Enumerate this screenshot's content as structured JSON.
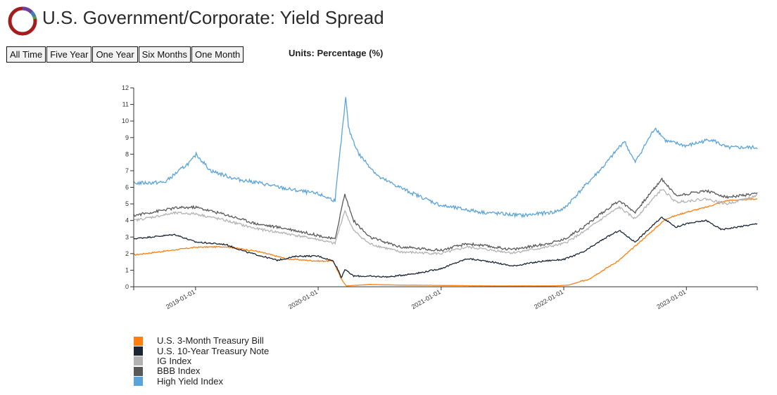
{
  "header": {
    "title": "U.S. Government/Corporate: Yield Spread",
    "units": "Units: Percentage (%)",
    "logo_colors": [
      "#a31d1d",
      "#6a3fa0",
      "#3f7fbf",
      "#4aa34a"
    ]
  },
  "range_buttons": [
    {
      "label": "All Time",
      "name": "all-time-button"
    },
    {
      "label": "Five Year",
      "name": "five-year-button"
    },
    {
      "label": "One Year",
      "name": "one-year-button"
    },
    {
      "label": "Six Months",
      "name": "six-months-button"
    },
    {
      "label": "One Month",
      "name": "one-month-button"
    }
  ],
  "chart_data": {
    "type": "line",
    "title": "",
    "xlabel": "",
    "ylabel": "",
    "x_range": [
      "2018-07-01",
      "2023-07-31"
    ],
    "ylim": [
      0,
      12
    ],
    "y_ticks": [
      "0",
      "1",
      "2",
      "3",
      "4",
      "5",
      "6",
      "7",
      "8",
      "9",
      "10",
      "11",
      "12"
    ],
    "x_ticks": [
      "2019-01-01",
      "2020-01-01",
      "2021-01-01",
      "2022-01-01",
      "2023-01-01"
    ],
    "grid": false,
    "legend_position": "bottom-left",
    "series": [
      {
        "name": "U.S. 3-Month Treasury Bill",
        "color": "#ff7f0e",
        "points": [
          [
            "2018-07-01",
            1.92
          ],
          [
            "2018-10-01",
            2.15
          ],
          [
            "2019-01-01",
            2.38
          ],
          [
            "2019-04-01",
            2.42
          ],
          [
            "2019-07-01",
            2.15
          ],
          [
            "2019-10-01",
            1.68
          ],
          [
            "2020-01-01",
            1.55
          ],
          [
            "2020-02-15",
            1.55
          ],
          [
            "2020-03-10",
            0.45
          ],
          [
            "2020-03-25",
            0.05
          ],
          [
            "2020-06-01",
            0.14
          ],
          [
            "2020-09-01",
            0.1
          ],
          [
            "2021-01-01",
            0.08
          ],
          [
            "2021-06-01",
            0.05
          ],
          [
            "2021-12-01",
            0.05
          ],
          [
            "2022-01-15",
            0.1
          ],
          [
            "2022-03-15",
            0.45
          ],
          [
            "2022-06-15",
            1.6
          ],
          [
            "2022-09-01",
            3.0
          ],
          [
            "2022-11-01",
            4.1
          ],
          [
            "2023-01-01",
            4.5
          ],
          [
            "2023-03-01",
            4.8
          ],
          [
            "2023-05-01",
            5.2
          ],
          [
            "2023-07-31",
            5.3
          ]
        ]
      },
      {
        "name": "U.S. 10-Year Treasury Note",
        "color": "#1b2635",
        "points": [
          [
            "2018-07-01",
            2.9
          ],
          [
            "2018-11-01",
            3.15
          ],
          [
            "2019-01-01",
            2.7
          ],
          [
            "2019-04-01",
            2.55
          ],
          [
            "2019-06-01",
            2.1
          ],
          [
            "2019-09-01",
            1.6
          ],
          [
            "2019-11-01",
            1.85
          ],
          [
            "2020-01-01",
            1.85
          ],
          [
            "2020-02-15",
            1.55
          ],
          [
            "2020-03-01",
            1.0
          ],
          [
            "2020-03-10",
            0.55
          ],
          [
            "2020-03-20",
            1.05
          ],
          [
            "2020-04-15",
            0.65
          ],
          [
            "2020-08-01",
            0.6
          ],
          [
            "2020-11-01",
            0.85
          ],
          [
            "2021-01-01",
            1.1
          ],
          [
            "2021-03-20",
            1.7
          ],
          [
            "2021-06-01",
            1.5
          ],
          [
            "2021-08-01",
            1.25
          ],
          [
            "2021-11-01",
            1.55
          ],
          [
            "2022-01-01",
            1.65
          ],
          [
            "2022-03-01",
            2.1
          ],
          [
            "2022-05-01",
            2.9
          ],
          [
            "2022-06-15",
            3.4
          ],
          [
            "2022-08-01",
            2.7
          ],
          [
            "2022-10-20",
            4.2
          ],
          [
            "2022-12-01",
            3.6
          ],
          [
            "2023-01-01",
            3.8
          ],
          [
            "2023-03-01",
            4.0
          ],
          [
            "2023-04-15",
            3.45
          ],
          [
            "2023-07-31",
            3.8
          ]
        ]
      },
      {
        "name": "IG Index",
        "color": "#b3b3b3",
        "points": [
          [
            "2018-07-01",
            4.0
          ],
          [
            "2018-11-01",
            4.45
          ],
          [
            "2019-01-01",
            4.4
          ],
          [
            "2019-04-01",
            4.0
          ],
          [
            "2019-07-01",
            3.5
          ],
          [
            "2019-10-01",
            3.2
          ],
          [
            "2020-01-01",
            2.85
          ],
          [
            "2020-02-20",
            2.6
          ],
          [
            "2020-03-20",
            4.6
          ],
          [
            "2020-04-15",
            3.4
          ],
          [
            "2020-06-01",
            2.6
          ],
          [
            "2020-09-01",
            2.1
          ],
          [
            "2021-01-01",
            2.0
          ],
          [
            "2021-03-20",
            2.4
          ],
          [
            "2021-08-01",
            2.05
          ],
          [
            "2021-11-01",
            2.35
          ],
          [
            "2022-01-01",
            2.6
          ],
          [
            "2022-03-01",
            3.3
          ],
          [
            "2022-05-01",
            4.2
          ],
          [
            "2022-06-15",
            4.8
          ],
          [
            "2022-08-01",
            4.1
          ],
          [
            "2022-10-20",
            5.9
          ],
          [
            "2022-12-01",
            5.1
          ],
          [
            "2023-03-01",
            5.3
          ],
          [
            "2023-05-01",
            5.0
          ],
          [
            "2023-07-31",
            5.5
          ]
        ]
      },
      {
        "name": "BBB Index",
        "color": "#595959",
        "points": [
          [
            "2018-07-01",
            4.3
          ],
          [
            "2018-11-01",
            4.75
          ],
          [
            "2019-01-01",
            4.8
          ],
          [
            "2019-04-01",
            4.35
          ],
          [
            "2019-07-01",
            3.8
          ],
          [
            "2019-10-01",
            3.5
          ],
          [
            "2020-01-01",
            3.1
          ],
          [
            "2020-02-20",
            2.85
          ],
          [
            "2020-03-20",
            5.6
          ],
          [
            "2020-04-15",
            4.0
          ],
          [
            "2020-06-01",
            3.0
          ],
          [
            "2020-09-01",
            2.4
          ],
          [
            "2021-01-01",
            2.2
          ],
          [
            "2021-03-20",
            2.6
          ],
          [
            "2021-08-01",
            2.25
          ],
          [
            "2021-11-01",
            2.55
          ],
          [
            "2022-01-01",
            2.85
          ],
          [
            "2022-03-01",
            3.6
          ],
          [
            "2022-05-01",
            4.55
          ],
          [
            "2022-06-15",
            5.2
          ],
          [
            "2022-08-01",
            4.5
          ],
          [
            "2022-10-20",
            6.5
          ],
          [
            "2022-12-01",
            5.5
          ],
          [
            "2023-03-01",
            5.8
          ],
          [
            "2023-05-01",
            5.4
          ],
          [
            "2023-07-31",
            5.6
          ]
        ]
      },
      {
        "name": "High Yield Index",
        "color": "#5ba3d9",
        "points": [
          [
            "2018-07-01",
            6.25
          ],
          [
            "2018-10-01",
            6.3
          ],
          [
            "2018-12-20",
            7.6
          ],
          [
            "2019-01-03",
            8.0
          ],
          [
            "2019-02-15",
            7.0
          ],
          [
            "2019-05-01",
            6.5
          ],
          [
            "2019-07-01",
            6.3
          ],
          [
            "2019-10-01",
            5.9
          ],
          [
            "2020-01-01",
            5.6
          ],
          [
            "2020-02-20",
            5.2
          ],
          [
            "2020-03-23",
            11.4
          ],
          [
            "2020-04-01",
            9.5
          ],
          [
            "2020-05-01",
            8.0
          ],
          [
            "2020-07-01",
            6.6
          ],
          [
            "2020-10-01",
            5.7
          ],
          [
            "2021-01-01",
            4.9
          ],
          [
            "2021-05-01",
            4.5
          ],
          [
            "2021-09-01",
            4.3
          ],
          [
            "2021-12-01",
            4.5
          ],
          [
            "2022-01-01",
            4.7
          ],
          [
            "2022-03-01",
            6.0
          ],
          [
            "2022-05-01",
            7.3
          ],
          [
            "2022-06-30",
            8.8
          ],
          [
            "2022-08-01",
            7.5
          ],
          [
            "2022-09-30",
            9.6
          ],
          [
            "2022-11-01",
            8.8
          ],
          [
            "2023-01-01",
            8.5
          ],
          [
            "2023-03-15",
            8.9
          ],
          [
            "2023-05-01",
            8.4
          ],
          [
            "2023-07-31",
            8.4
          ]
        ]
      }
    ]
  }
}
